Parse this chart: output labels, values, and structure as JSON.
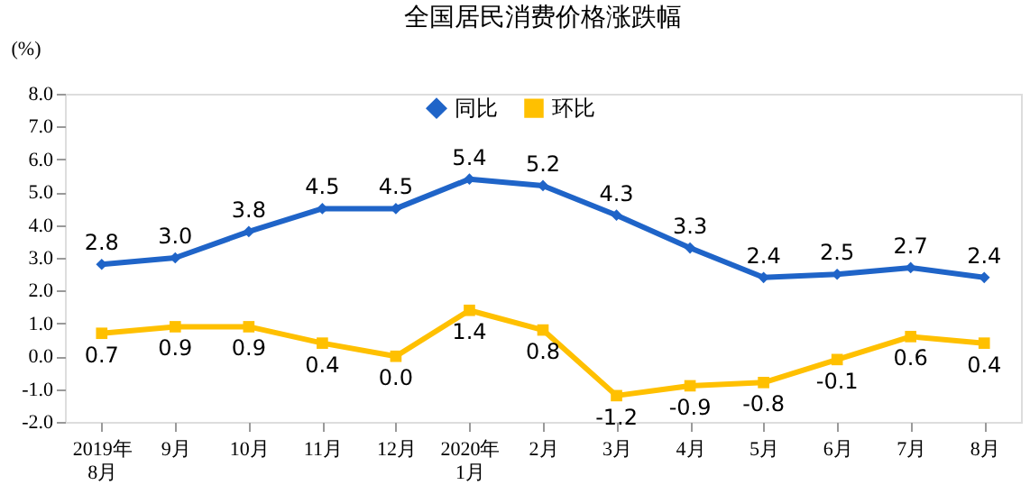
{
  "chart_data": {
    "type": "line",
    "title": "全国居民消费价格涨跌幅",
    "ylabel": "(%)",
    "categories": [
      "2019年\n8月",
      "9月",
      "10月",
      "11月",
      "12月",
      "2020年\n1月",
      "2月",
      "3月",
      "4月",
      "5月",
      "6月",
      "7月",
      "8月"
    ],
    "series": [
      {
        "name": "同比",
        "color": "#1f64c8",
        "marker": "diamond",
        "values": [
          2.8,
          3.0,
          3.8,
          4.5,
          4.5,
          5.4,
          5.2,
          4.3,
          3.3,
          2.4,
          2.5,
          2.7,
          2.4
        ],
        "value_labels": [
          "2.8",
          "3.0",
          "3.8",
          "4.5",
          "4.5",
          "5.4",
          "5.2",
          "4.3",
          "3.3",
          "2.4",
          "2.5",
          "2.7",
          "2.4"
        ]
      },
      {
        "name": "环比",
        "color": "#ffc000",
        "marker": "square",
        "values": [
          0.7,
          0.9,
          0.9,
          0.4,
          0.0,
          1.4,
          0.8,
          -1.2,
          -0.9,
          -0.8,
          -0.1,
          0.6,
          0.4
        ],
        "value_labels": [
          "0.7",
          "0.9",
          "0.9",
          "0.4",
          "0.0",
          "1.4",
          "0.8",
          "-1.2",
          "-0.9",
          "-0.8",
          "-0.1",
          "0.6",
          "0.4"
        ]
      }
    ],
    "ylim": [
      -2,
      8
    ],
    "yticks": [
      {
        "value": -2,
        "label": "-2.0"
      },
      {
        "value": -1,
        "label": "-1.0"
      },
      {
        "value": 0,
        "label": "0.0"
      },
      {
        "value": 1,
        "label": "1.0"
      },
      {
        "value": 2,
        "label": "2.0"
      },
      {
        "value": 3,
        "label": "3.0"
      },
      {
        "value": 4,
        "label": "4.0"
      },
      {
        "value": 5,
        "label": "5.0"
      },
      {
        "value": 6,
        "label": "6.0"
      },
      {
        "value": 7,
        "label": "7.0"
      },
      {
        "value": 8,
        "label": "8.0"
      }
    ],
    "grid": false,
    "legend": "top",
    "line_style": "solid"
  }
}
